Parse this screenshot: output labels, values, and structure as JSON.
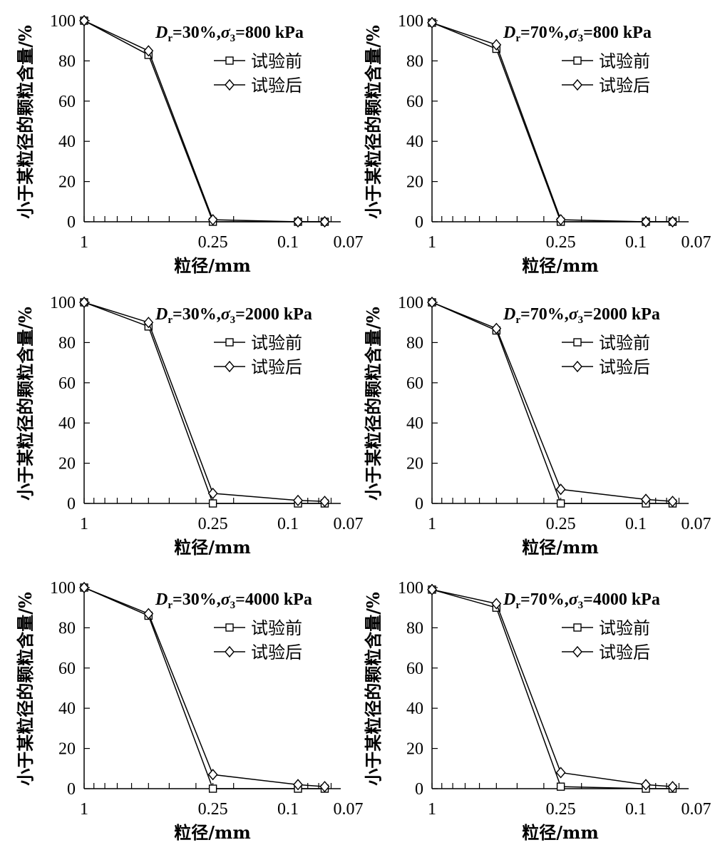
{
  "chart_data": [
    {
      "type": "line",
      "title_parts": {
        "symbol": "D",
        "sub": "r",
        "rest1": "=30%,",
        "sigma": "σ",
        "sigma_sub": "3",
        "rest2": "=800 kPa"
      },
      "xlabel": "粒径/mm",
      "ylabel": "小于某粒径的颗粒含量/%",
      "x_ticks": [
        "1",
        "0.25",
        "0.1",
        "0.07"
      ],
      "x": [
        1,
        0.5,
        0.25,
        0.1,
        0.075
      ],
      "ylim": [
        0,
        100
      ],
      "y_ticks": [
        "0",
        "20",
        "40",
        "60",
        "80",
        "100"
      ],
      "legend_position": "top-right",
      "series": [
        {
          "name": "试验前",
          "marker": "square",
          "values": [
            100,
            83,
            0,
            0,
            0
          ]
        },
        {
          "name": "试验后",
          "marker": "diamond",
          "values": [
            100,
            85,
            1,
            0,
            0
          ]
        }
      ]
    },
    {
      "type": "line",
      "title_parts": {
        "symbol": "D",
        "sub": "r",
        "rest1": "=70%,",
        "sigma": "σ",
        "sigma_sub": "3",
        "rest2": "=800 kPa"
      },
      "xlabel": "粒径/mm",
      "ylabel": "小于某粒径的颗粒含量/%",
      "x_ticks": [
        "1",
        "0.25",
        "0.1",
        "0.07"
      ],
      "x": [
        1,
        0.5,
        0.25,
        0.1,
        0.075
      ],
      "ylim": [
        0,
        100
      ],
      "y_ticks": [
        "0",
        "20",
        "40",
        "60",
        "80",
        "100"
      ],
      "legend_position": "top-right",
      "series": [
        {
          "name": "试验前",
          "marker": "square",
          "values": [
            99,
            86,
            0,
            0,
            0
          ]
        },
        {
          "name": "试验后",
          "marker": "diamond",
          "values": [
            99,
            88,
            1,
            0,
            0
          ]
        }
      ]
    },
    {
      "type": "line",
      "title_parts": {
        "symbol": "D",
        "sub": "r",
        "rest1": "=30%,",
        "sigma": "σ",
        "sigma_sub": "3",
        "rest2": "=2000 kPa"
      },
      "xlabel": "粒径/mm",
      "ylabel": "小于某粒径的颗粒含量/%",
      "x_ticks": [
        "1",
        "0.25",
        "0.1",
        "0.07"
      ],
      "x": [
        1,
        0.5,
        0.25,
        0.1,
        0.075
      ],
      "ylim": [
        0,
        100
      ],
      "y_ticks": [
        "0",
        "20",
        "40",
        "60",
        "80",
        "100"
      ],
      "legend_position": "top-right",
      "series": [
        {
          "name": "试验前",
          "marker": "square",
          "values": [
            100,
            88,
            0,
            0,
            0
          ]
        },
        {
          "name": "试验后",
          "marker": "diamond",
          "values": [
            100,
            90,
            5,
            1.5,
            1
          ]
        }
      ]
    },
    {
      "type": "line",
      "title_parts": {
        "symbol": "D",
        "sub": "r",
        "rest1": "=70%,",
        "sigma": "σ",
        "sigma_sub": "3",
        "rest2": "=2000 kPa"
      },
      "xlabel": "粒径/mm",
      "ylabel": "小于某粒径的颗粒含量/%",
      "x_ticks": [
        "1",
        "0.25",
        "0.1",
        "0.07"
      ],
      "x": [
        1,
        0.5,
        0.25,
        0.1,
        0.075
      ],
      "ylim": [
        0,
        100
      ],
      "y_ticks": [
        "0",
        "20",
        "40",
        "60",
        "80",
        "100"
      ],
      "legend_position": "top-right",
      "series": [
        {
          "name": "试验前",
          "marker": "square",
          "values": [
            100,
            86,
            0,
            0,
            0
          ]
        },
        {
          "name": "试验后",
          "marker": "diamond",
          "values": [
            100,
            87,
            7,
            2,
            1
          ]
        }
      ]
    },
    {
      "type": "line",
      "title_parts": {
        "symbol": "D",
        "sub": "r",
        "rest1": "=30%,",
        "sigma": "σ",
        "sigma_sub": "3",
        "rest2": "=4000 kPa"
      },
      "xlabel": "粒径/mm",
      "ylabel": "小于某粒径的颗粒含量/%",
      "x_ticks": [
        "1",
        "0.25",
        "0.1",
        "0.07"
      ],
      "x": [
        1,
        0.5,
        0.25,
        0.1,
        0.075
      ],
      "ylim": [
        0,
        100
      ],
      "y_ticks": [
        "0",
        "20",
        "40",
        "60",
        "80",
        "100"
      ],
      "legend_position": "top-right",
      "series": [
        {
          "name": "试验前",
          "marker": "square",
          "values": [
            100,
            86,
            0,
            0,
            0
          ]
        },
        {
          "name": "试验后",
          "marker": "diamond",
          "values": [
            100,
            87,
            7,
            2,
            1
          ]
        }
      ]
    },
    {
      "type": "line",
      "title_parts": {
        "symbol": "D",
        "sub": "r",
        "rest1": "=70%,",
        "sigma": "σ",
        "sigma_sub": "3",
        "rest2": "=4000 kPa"
      },
      "xlabel": "粒径/mm",
      "ylabel": "小于某粒径的颗粒含量/%",
      "x_ticks": [
        "1",
        "0.25",
        "0.1",
        "0.07"
      ],
      "x": [
        1,
        0.5,
        0.25,
        0.1,
        0.075
      ],
      "ylim": [
        0,
        100
      ],
      "y_ticks": [
        "0",
        "20",
        "40",
        "60",
        "80",
        "100"
      ],
      "legend_position": "top-right",
      "series": [
        {
          "name": "试验前",
          "marker": "square",
          "values": [
            99,
            90,
            1,
            0,
            0
          ]
        },
        {
          "name": "试验后",
          "marker": "diamond",
          "values": [
            99,
            92,
            8,
            2,
            1
          ]
        }
      ]
    }
  ]
}
